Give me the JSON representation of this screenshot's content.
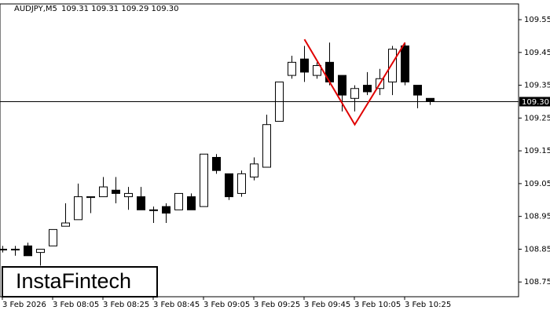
{
  "chart_data": {
    "type": "candlestick",
    "header": {
      "symbol": "AUDJPY,M5",
      "quote": "109.31 109.31 109.29 109.30"
    },
    "logo": "InstaFintech",
    "categories": [
      "3 Feb 2026",
      null,
      null,
      null,
      "3 Feb 08:05",
      null,
      null,
      null,
      "3 Feb 08:25",
      null,
      null,
      null,
      "3 Feb 08:45",
      null,
      null,
      null,
      "3 Feb 09:05",
      null,
      null,
      null,
      "3 Feb 09:25",
      null,
      null,
      null,
      "3 Feb 09:45",
      null,
      null,
      null,
      "3 Feb 10:05",
      null,
      null,
      null,
      "3 Feb 10:25",
      null,
      null
    ],
    "open": [
      108.85,
      108.85,
      108.86,
      108.84,
      108.86,
      108.92,
      108.94,
      109.01,
      109.01,
      109.03,
      109.01,
      109.01,
      108.97,
      108.98,
      108.97,
      109.01,
      108.98,
      109.13,
      109.08,
      109.02,
      109.07,
      109.1,
      109.24,
      109.38,
      109.43,
      109.38,
      109.42,
      109.38,
      109.31,
      109.35,
      109.34,
      109.36,
      109.47,
      109.35,
      109.31
    ],
    "high": [
      108.86,
      108.86,
      108.87,
      108.85,
      108.91,
      108.99,
      109.05,
      109.01,
      109.07,
      109.07,
      109.04,
      109.04,
      108.98,
      108.99,
      109.02,
      109.02,
      109.14,
      109.14,
      109.08,
      109.09,
      109.13,
      109.26,
      109.36,
      109.44,
      109.47,
      109.42,
      109.48,
      109.38,
      109.35,
      109.39,
      109.4,
      109.47,
      109.48,
      109.35,
      109.31
    ],
    "low": [
      108.84,
      108.83,
      108.83,
      108.8,
      108.86,
      108.92,
      108.94,
      108.96,
      109.01,
      108.99,
      108.97,
      108.97,
      108.93,
      108.93,
      108.97,
      108.97,
      108.98,
      109.08,
      109.0,
      109.01,
      109.06,
      109.1,
      109.24,
      109.37,
      109.36,
      109.37,
      109.35,
      109.27,
      109.27,
      109.32,
      109.32,
      109.32,
      109.35,
      109.28,
      109.29
    ],
    "close": [
      108.85,
      108.85,
      108.83,
      108.85,
      108.91,
      108.93,
      109.01,
      109.01,
      109.04,
      109.02,
      109.02,
      108.97,
      108.97,
      108.96,
      109.02,
      108.97,
      109.14,
      109.09,
      109.01,
      109.08,
      109.11,
      109.23,
      109.36,
      109.42,
      109.39,
      109.41,
      109.36,
      109.32,
      109.34,
      109.33,
      109.37,
      109.46,
      109.36,
      109.32,
      109.3
    ],
    "up_color": "#ffffff",
    "down_color": "#000000",
    "ylim": [
      108.705,
      109.598
    ],
    "yticks": [
      108.75,
      108.85,
      108.95,
      109.05,
      109.15,
      109.25,
      109.35,
      109.45,
      109.55
    ],
    "price_line": {
      "value": 109.3,
      "label": "109.30"
    },
    "pattern": {
      "color": "#e00000",
      "x": [
        24,
        28,
        32
      ],
      "values": [
        109.49,
        109.23,
        109.48
      ]
    }
  }
}
